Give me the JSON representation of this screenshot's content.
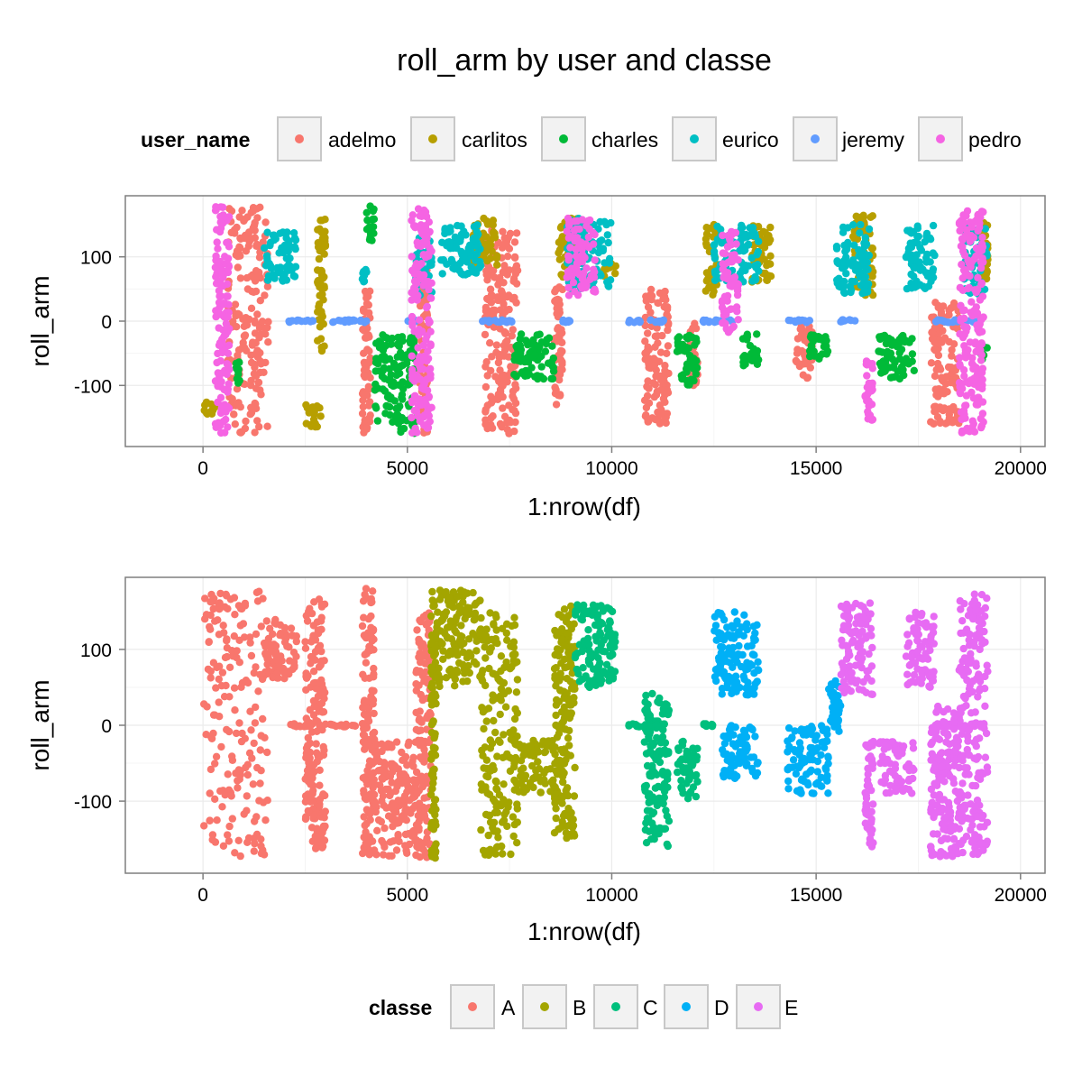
{
  "title": "roll_arm by user and classe",
  "chart_data": [
    {
      "type": "scatter",
      "title": "roll_arm by user and classe",
      "xlabel": "1:nrow(df)",
      "ylabel": "roll_arm",
      "xlim": [
        -1900,
        20600
      ],
      "ylim": [
        -195,
        195
      ],
      "xticks": [
        0,
        5000,
        10000,
        15000,
        20000
      ],
      "xtick_labels": [
        "0",
        "5000",
        "10000",
        "15000",
        "20000"
      ],
      "yticks": [
        -100,
        0,
        100
      ],
      "ytick_labels": [
        "-100",
        "0",
        "100"
      ],
      "grid": true,
      "color_by": "user_name",
      "legend": {
        "title": "user_name",
        "placement": "top",
        "entries": [
          {
            "label": "adelmo",
            "color": "#F8766D"
          },
          {
            "label": "carlitos",
            "color": "#B79F00"
          },
          {
            "label": "charles",
            "color": "#00BA38"
          },
          {
            "label": "eurico",
            "color": "#00BFC4"
          },
          {
            "label": "jeremy",
            "color": "#619CFF"
          },
          {
            "label": "pedro",
            "color": "#F564E3"
          }
        ]
      },
      "series": [
        {
          "name": "adelmo",
          "segments": [
            [
              600,
              1600,
              -175,
              178
            ],
            [
              3900,
              4100,
              -175,
              55
            ],
            [
              5300,
              5500,
              -175,
              80
            ],
            [
              6900,
              7700,
              -175,
              150
            ],
            [
              8600,
              8800,
              -130,
              60
            ],
            [
              10800,
              11400,
              -160,
              50
            ],
            [
              11900,
              12100,
              -100,
              0
            ],
            [
              14500,
              14900,
              -90,
              0
            ],
            [
              17800,
              18500,
              -160,
              30
            ]
          ]
        },
        {
          "name": "carlitos",
          "segments": [
            [
              0,
              300,
              -145,
              -125
            ],
            [
              2500,
              2900,
              -165,
              -130
            ],
            [
              2800,
              3000,
              -50,
              170
            ],
            [
              6600,
              7200,
              80,
              160
            ],
            [
              8700,
              9300,
              60,
              160
            ],
            [
              9800,
              10100,
              70,
              90
            ],
            [
              12300,
              12600,
              40,
              150
            ],
            [
              13400,
              13900,
              60,
              150
            ],
            [
              15900,
              16400,
              40,
              165
            ],
            [
              19000,
              19200,
              60,
              165
            ]
          ]
        },
        {
          "name": "charles",
          "segments": [
            [
              800,
              900,
              -100,
              -60
            ],
            [
              4000,
              4200,
              120,
              180
            ],
            [
              4200,
              5200,
              -175,
              -20
            ],
            [
              7600,
              8600,
              -90,
              -20
            ],
            [
              11600,
              12100,
              -100,
              -20
            ],
            [
              13200,
              13600,
              -70,
              -20
            ],
            [
              14800,
              15300,
              -60,
              -20
            ],
            [
              16500,
              17400,
              -90,
              -20
            ],
            [
              19000,
              19200,
              -60,
              -40
            ]
          ]
        },
        {
          "name": "eurico",
          "segments": [
            [
              1500,
              2300,
              60,
              140
            ],
            [
              3900,
              4000,
              60,
              80
            ],
            [
              5200,
              5600,
              40,
              130
            ],
            [
              5800,
              6800,
              70,
              150
            ],
            [
              8900,
              10000,
              50,
              160
            ],
            [
              12500,
              13600,
              60,
              150
            ],
            [
              15500,
              16300,
              40,
              150
            ],
            [
              17200,
              17900,
              50,
              150
            ],
            [
              18600,
              19200,
              40,
              150
            ]
          ]
        },
        {
          "name": "jeremy",
          "segments": [
            [
              2100,
              2700,
              -2,
              2
            ],
            [
              3100,
              4000,
              -2,
              2
            ],
            [
              5000,
              5200,
              -2,
              2
            ],
            [
              6800,
              7600,
              -2,
              2
            ],
            [
              8800,
              9000,
              -2,
              2
            ],
            [
              10400,
              11300,
              -2,
              2
            ],
            [
              12200,
              13000,
              -2,
              2
            ],
            [
              14300,
              14900,
              -2,
              2
            ],
            [
              15600,
              16000,
              -2,
              2
            ],
            [
              17900,
              19000,
              -2,
              2
            ]
          ]
        },
        {
          "name": "pedro",
          "segments": [
            [
              300,
              650,
              -175,
              178
            ],
            [
              5100,
              5600,
              -175,
              175
            ],
            [
              8900,
              9600,
              40,
              160
            ],
            [
              12700,
              13100,
              -20,
              140
            ],
            [
              16200,
              16400,
              -160,
              -60
            ],
            [
              18500,
              19100,
              -175,
              175
            ]
          ]
        }
      ]
    },
    {
      "type": "scatter",
      "xlabel": "1:nrow(df)",
      "ylabel": "roll_arm",
      "xlim": [
        -1900,
        20600
      ],
      "ylim": [
        -195,
        195
      ],
      "xticks": [
        0,
        5000,
        10000,
        15000,
        20000
      ],
      "xtick_labels": [
        "0",
        "5000",
        "10000",
        "15000",
        "20000"
      ],
      "yticks": [
        -100,
        0,
        100
      ],
      "ytick_labels": [
        "-100",
        "0",
        "100"
      ],
      "grid": true,
      "color_by": "classe",
      "legend": {
        "title": "classe",
        "placement": "bottom",
        "entries": [
          {
            "label": "A",
            "color": "#F8766D"
          },
          {
            "label": "B",
            "color": "#A3A500"
          },
          {
            "label": "C",
            "color": "#00BF7D"
          },
          {
            "label": "D",
            "color": "#00B0F6"
          },
          {
            "label": "E",
            "color": "#E76BF3"
          }
        ]
      },
      "series": [
        {
          "name": "A",
          "segments": [
            [
              0,
              1600,
              -175,
              178
            ],
            [
              1500,
              2300,
              60,
              140
            ],
            [
              2100,
              2700,
              -2,
              2
            ],
            [
              2500,
              3000,
              -165,
              170
            ],
            [
              3100,
              4000,
              -2,
              2
            ],
            [
              3900,
              4200,
              -175,
              180
            ],
            [
              4200,
              5200,
              -175,
              -20
            ],
            [
              5200,
              5580,
              -175,
              150
            ]
          ]
        },
        {
          "name": "B",
          "segments": [
            [
              5580,
              6800,
              50,
              178
            ],
            [
              5580,
              5700,
              -175,
              120
            ],
            [
              6800,
              7700,
              -175,
              150
            ],
            [
              7600,
              8600,
              -90,
              -20
            ],
            [
              8600,
              9100,
              -150,
              160
            ]
          ]
        },
        {
          "name": "C",
          "segments": [
            [
              9100,
              10100,
              50,
              160
            ],
            [
              10400,
              11300,
              -2,
              2
            ],
            [
              10800,
              11400,
              -160,
              50
            ],
            [
              11600,
              12100,
              -100,
              -20
            ],
            [
              12200,
              12500,
              -2,
              2
            ]
          ]
        },
        {
          "name": "D",
          "segments": [
            [
              12500,
              13600,
              40,
              150
            ],
            [
              12700,
              13600,
              -70,
              0
            ],
            [
              14300,
              15300,
              -90,
              0
            ],
            [
              15300,
              15600,
              -10,
              60
            ]
          ]
        },
        {
          "name": "E",
          "segments": [
            [
              15600,
              16400,
              40,
              165
            ],
            [
              16200,
              16400,
              -160,
              -20
            ],
            [
              16500,
              17400,
              -90,
              -20
            ],
            [
              17200,
              17900,
              50,
              150
            ],
            [
              17900,
              19000,
              -2,
              2
            ],
            [
              17800,
              18600,
              -175,
              30
            ],
            [
              18500,
              19200,
              -175,
              175
            ]
          ]
        }
      ]
    }
  ]
}
